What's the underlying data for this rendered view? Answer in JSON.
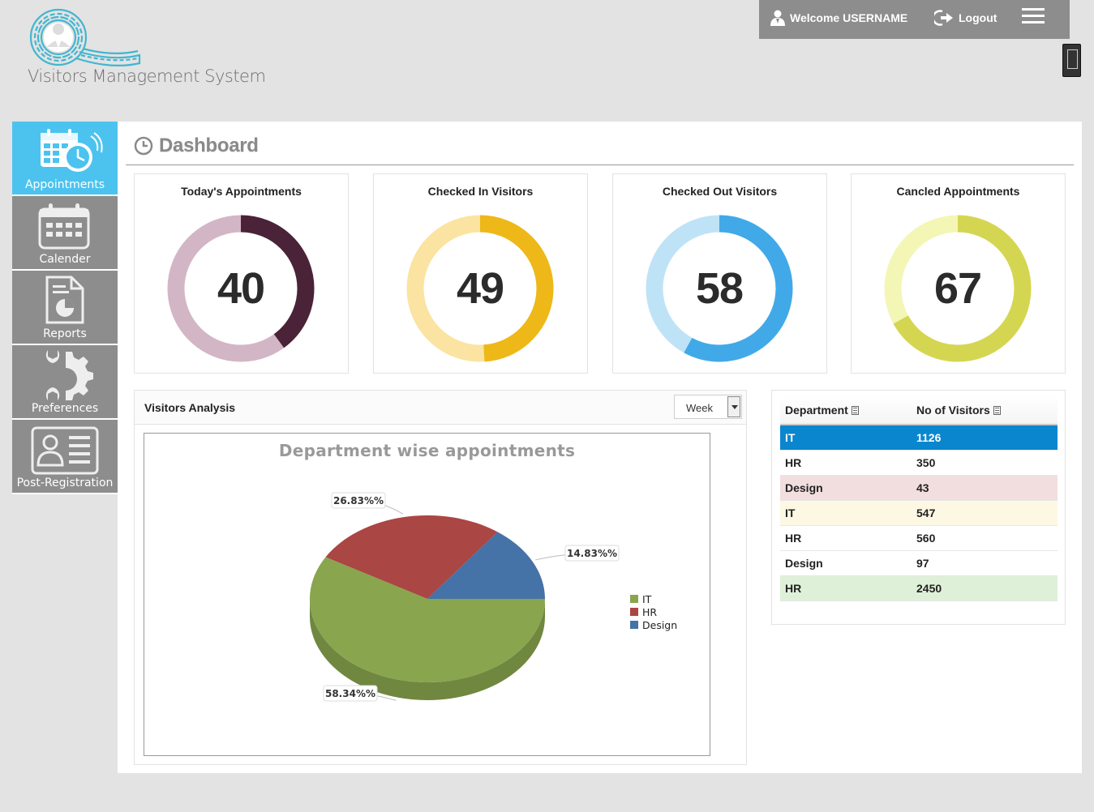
{
  "app": {
    "name": "Visitors Management System"
  },
  "topbar": {
    "welcome": "Welcome USERNAME",
    "logout": "Logout"
  },
  "sidebar": {
    "items": [
      {
        "label": "Appointments",
        "icon": "calendar-clock-icon",
        "active": true
      },
      {
        "label": "Calender",
        "icon": "calendar-icon",
        "active": false
      },
      {
        "label": "Reports",
        "icon": "report-icon",
        "active": false
      },
      {
        "label": "Preferences",
        "icon": "gear-wrench-icon",
        "active": false
      },
      {
        "label": "Post-Registration",
        "icon": "id-card-icon",
        "active": false
      }
    ]
  },
  "dashboard": {
    "title": "Dashboard",
    "cards": [
      {
        "title": "Today's Appointments",
        "value": "40",
        "progress": 0.4,
        "track": "#d3b6c6",
        "fill": "#4a2338"
      },
      {
        "title": "Checked In Visitors",
        "value": "49",
        "progress": 0.49,
        "track": "#fbe3a1",
        "fill": "#eeb819"
      },
      {
        "title": "Checked Out Visitors",
        "value": "58",
        "progress": 0.58,
        "track": "#bfe3f6",
        "fill": "#41a9e8"
      },
      {
        "title": "Cancled Appointments",
        "value": "67",
        "progress": 0.67,
        "track": "#f4f6b6",
        "fill": "#d4d651"
      }
    ]
  },
  "analysis": {
    "title": "Visitors Analysis",
    "period": "Week"
  },
  "chart_data": {
    "type": "pie",
    "title": "Department wise appointments",
    "categories": [
      "IT",
      "HR",
      "Design"
    ],
    "values": [
      58.34,
      26.83,
      14.83
    ],
    "labels": [
      "58.34%%",
      "26.83%%",
      "14.83%%"
    ],
    "colors": [
      "#89a54e",
      "#aa4643",
      "#4572a7"
    ],
    "legend": "right"
  },
  "department_table": {
    "headers": [
      "Department",
      "No of Visitors"
    ],
    "rows": [
      {
        "department": "IT",
        "visitors": "1126"
      },
      {
        "department": "HR",
        "visitors": "350"
      },
      {
        "department": "Design",
        "visitors": "43"
      },
      {
        "department": "IT",
        "visitors": "547"
      },
      {
        "department": "HR",
        "visitors": "560"
      },
      {
        "department": "Design",
        "visitors": "97"
      },
      {
        "department": "HR",
        "visitors": "2450"
      }
    ]
  }
}
